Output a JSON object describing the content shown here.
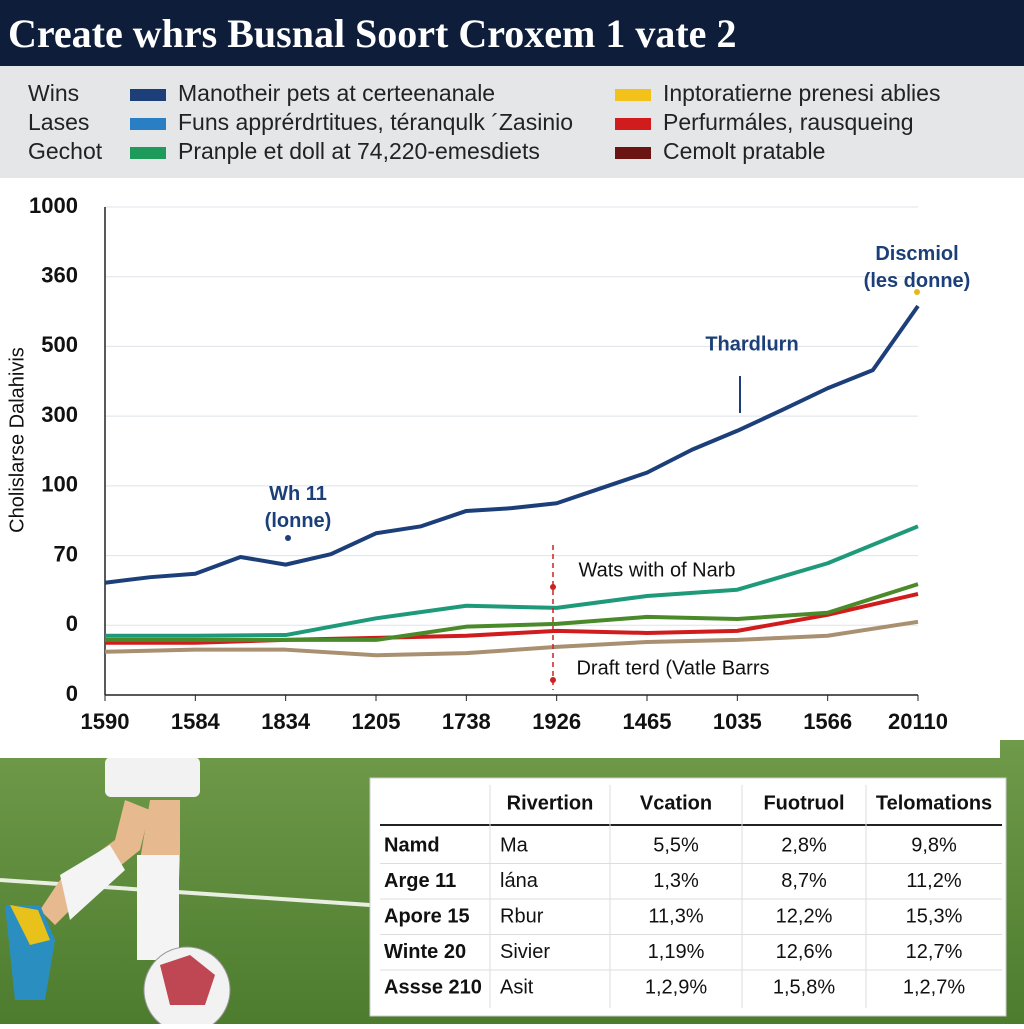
{
  "header": {
    "title": "Create whrs Busnal Soort Croxem 1 vate 2"
  },
  "legend": {
    "groups": [
      "Wins",
      "Lases",
      "Gechot"
    ],
    "items": [
      {
        "label": "Manotheir pets at certeenanale",
        "color": "#1c3f7a"
      },
      {
        "label": "Funs apprérdrtitues, téranqulk ´Zasinio",
        "color": "#2a7fc4"
      },
      {
        "label": "Pranple et doll at 74,220-emesdiets",
        "color": "#1e9a5a"
      },
      {
        "label": "Inptoratierne prenesi ablies",
        "color": "#f2c21a"
      },
      {
        "label": "Perfurmáles, rausqueing",
        "color": "#d01c1c"
      },
      {
        "label": "Cemolt pratable",
        "color": "#6a1414"
      }
    ]
  },
  "chart_data": {
    "type": "line",
    "y_label": "Cholislarse Dalahivis",
    "ylim": [
      0,
      7
    ],
    "yticks": [
      {
        "value": 0,
        "label": "0"
      },
      {
        "value": 1,
        "label": "0"
      },
      {
        "value": 2,
        "label": "70"
      },
      {
        "value": 3,
        "label": "100"
      },
      {
        "value": 4,
        "label": "300"
      },
      {
        "value": 5,
        "label": "500"
      },
      {
        "value": 6,
        "label": "360"
      },
      {
        "value": 7,
        "label": "1000"
      }
    ],
    "xlim": [
      0,
      9
    ],
    "xticks": [
      {
        "value": 0,
        "label": "1590"
      },
      {
        "value": 1,
        "label": "1584"
      },
      {
        "value": 2,
        "label": "1834"
      },
      {
        "value": 3,
        "label": "1205"
      },
      {
        "value": 4,
        "label": "1738"
      },
      {
        "value": 5,
        "label": "1926"
      },
      {
        "value": 6,
        "label": "1465"
      },
      {
        "value": 7,
        "label": "1035"
      },
      {
        "value": 8,
        "label": "1566"
      },
      {
        "value": 9,
        "label": "20110"
      }
    ],
    "grid": true,
    "series": [
      {
        "color": "#1c3f7a",
        "x": [
          0,
          0.5,
          1,
          1.5,
          2,
          2.5,
          3,
          3.5,
          4,
          4.5,
          5,
          5.5,
          6,
          6.5,
          7,
          7.5,
          8,
          8.5,
          9
        ],
        "values": [
          1.61,
          1.69,
          1.74,
          1.98,
          1.87,
          2.02,
          2.32,
          2.42,
          2.64,
          2.68,
          2.75,
          2.97,
          3.19,
          3.52,
          3.79,
          4.09,
          4.4,
          4.66,
          5.58
        ]
      },
      {
        "color": "#1e9a7a",
        "x": [
          0,
          1,
          2,
          3,
          4,
          5,
          6,
          7,
          8,
          9
        ],
        "values": [
          0.85,
          0.85,
          0.86,
          1.1,
          1.28,
          1.25,
          1.42,
          1.51,
          1.89,
          2.42
        ]
      },
      {
        "color": "#4a8a2a",
        "x": [
          0,
          1,
          2,
          3,
          4,
          5,
          6,
          7,
          8,
          9
        ],
        "values": [
          0.79,
          0.79,
          0.79,
          0.79,
          0.98,
          1.02,
          1.12,
          1.09,
          1.18,
          1.59
        ]
      },
      {
        "color": "#d01c1c",
        "x": [
          0,
          1,
          2,
          3,
          4,
          5,
          6,
          7,
          8,
          9
        ],
        "values": [
          0.75,
          0.75,
          0.79,
          0.82,
          0.85,
          0.92,
          0.89,
          0.92,
          1.15,
          1.45
        ]
      },
      {
        "color": "#a89070",
        "x": [
          0,
          1,
          2,
          3,
          4,
          5,
          6,
          7,
          8,
          9
        ],
        "values": [
          0.62,
          0.65,
          0.65,
          0.57,
          0.6,
          0.69,
          0.76,
          0.79,
          0.85,
          1.05
        ]
      }
    ],
    "annotations": [
      "Wh 11 (lonne)",
      "Thardlurn",
      "Discmiol (les donne)",
      "Wats with of Narb",
      "Draft terd (Vatle Barrs"
    ]
  },
  "table": {
    "header": [
      "Rivertion",
      "Vcation",
      "Fuotruol",
      "Telomations"
    ],
    "rows": [
      [
        "Namd",
        "Ma",
        "5,5%",
        "2,8%",
        "9,8%"
      ],
      [
        "Arge 11",
        "lána",
        "1,3%",
        "8,7%",
        "11,2%"
      ],
      [
        "Apore 15",
        "Rbur",
        "11,3%",
        "12,2%",
        "15,3%"
      ],
      [
        "Winte 20",
        "Sivier",
        "1,19%",
        "12,6%",
        "12,7%"
      ],
      [
        "Assse 210",
        "Asit",
        "1,2,9%",
        "1,5,8%",
        "1,2,7%"
      ]
    ]
  }
}
